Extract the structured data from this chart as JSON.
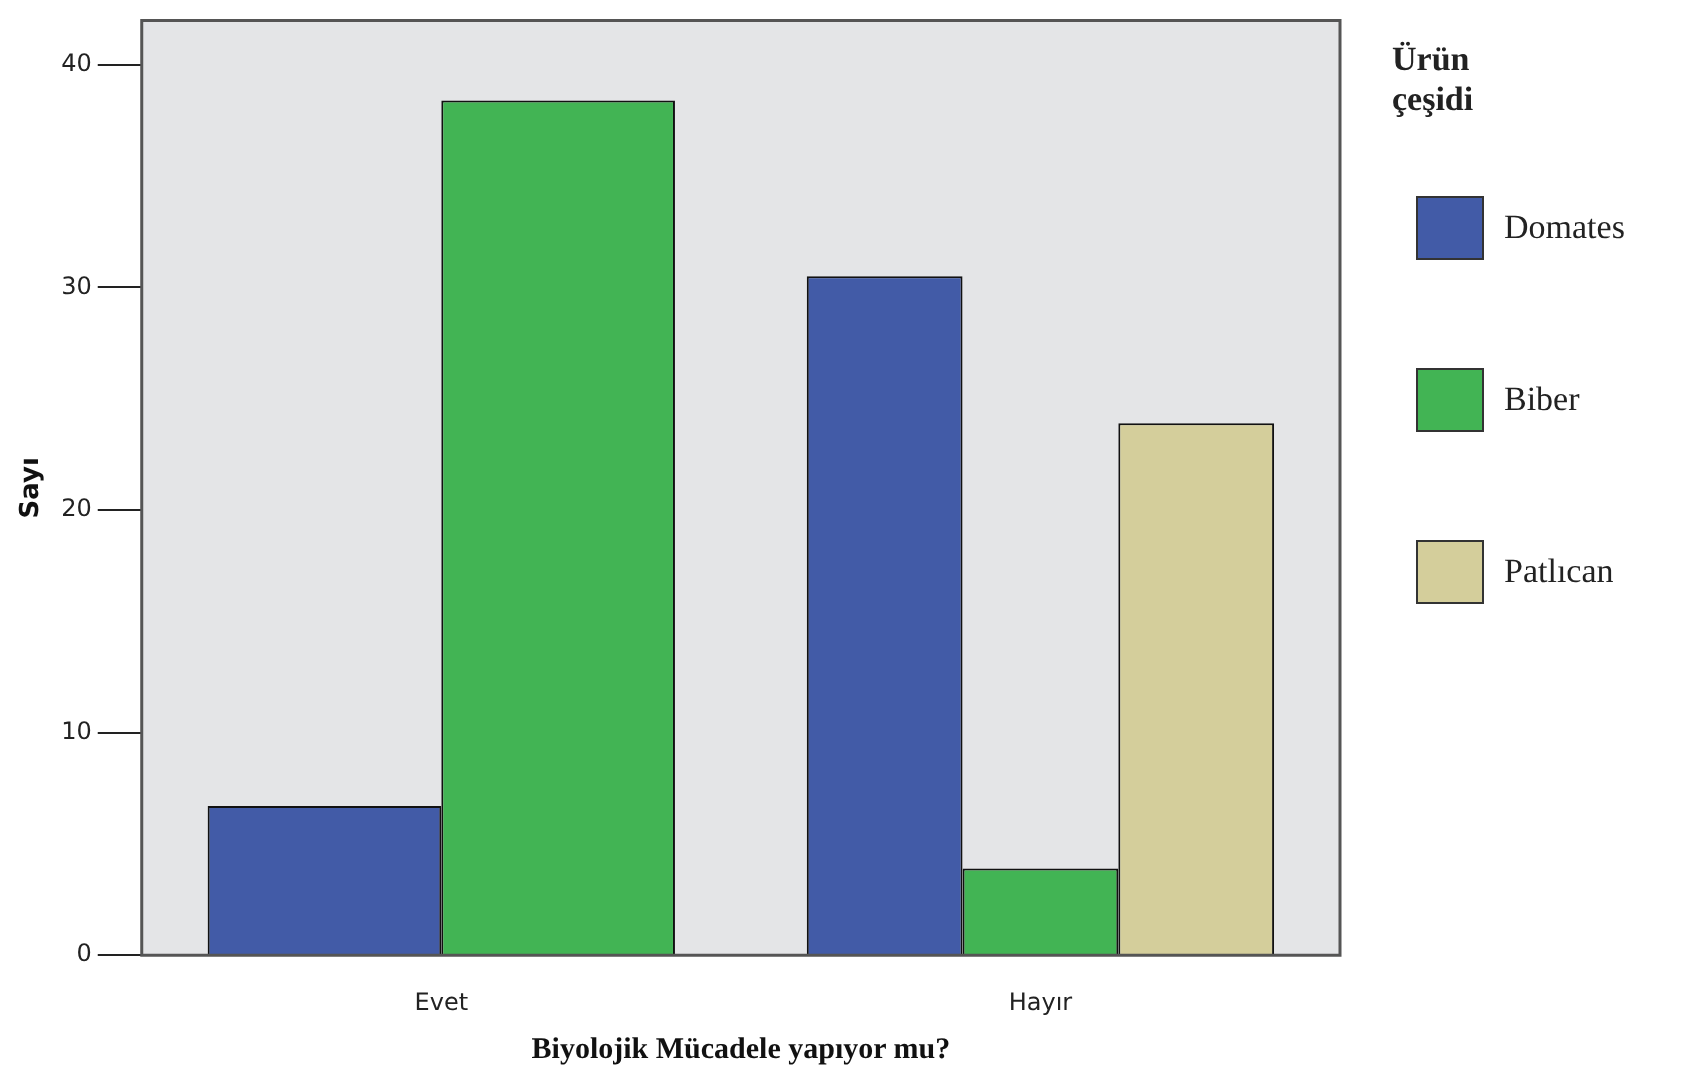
{
  "chart_data": {
    "type": "bar",
    "xlabel": "Biyolojik Mücadele yapıyor mu?",
    "ylabel": "Sayı",
    "legend_title": "Ürün çeşidi",
    "categories": [
      "Evet",
      "Hayır"
    ],
    "series": [
      {
        "name": "Domates",
        "color": "#425ba7",
        "values": [
          6.7,
          30.5
        ]
      },
      {
        "name": "Biber",
        "color": "#42b454",
        "values": [
          38.4,
          3.9
        ]
      },
      {
        "name": "Patlıcan",
        "color": "#d4ce9b",
        "values": [
          null,
          23.9
        ]
      }
    ],
    "ylim": [
      0,
      42
    ],
    "yticks": [
      0,
      10,
      20,
      30,
      40
    ],
    "grid": false,
    "legend": "right"
  }
}
